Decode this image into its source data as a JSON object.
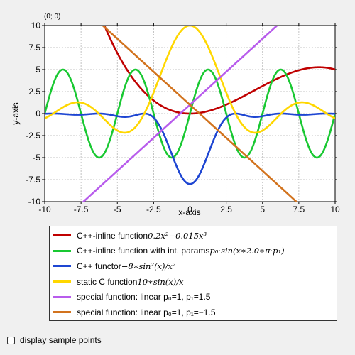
{
  "coordinate_readout": "(0; 0)",
  "chart_data": {
    "type": "line",
    "xlabel": "x-axis",
    "ylabel": "y-axis",
    "xlim": [
      -10,
      10
    ],
    "ylim": [
      -10,
      10
    ],
    "grid": true,
    "legend_placement": "bottom",
    "x_ticks": [
      "-10",
      "-7.5",
      "-5",
      "-2.5",
      "0",
      "2.5",
      "5",
      "7.5",
      "10"
    ],
    "y_ticks": [
      "10",
      "7.5",
      "5",
      "2.5",
      "0",
      "-2.5",
      "-5",
      "-7.5",
      "-10"
    ],
    "series": [
      {
        "name": "C++-inline function 0.2x²−0.015x³",
        "color": "#c00000",
        "func": "cubic"
      },
      {
        "name": "C++-inline function with int. params p₀·sin(x·2.0·π·p₁)",
        "color": "#19c832",
        "func": "sin_params"
      },
      {
        "name": "C++ functor −8·sin²(x)/x²",
        "color": "#1e46d2",
        "func": "sinc2"
      },
      {
        "name": "static C function 10·sin(x)/x",
        "color": "#ffd700",
        "func": "sinc"
      },
      {
        "name": "special function: linear p₀=1, p₁=1.5",
        "color": "#b85cec",
        "func": "linear_pos"
      },
      {
        "name": "special function: linear p₀=1, p₁=−1.5",
        "color": "#d2731e",
        "func": "linear_neg"
      }
    ]
  },
  "legend": {
    "items": [
      {
        "prefix": "C++-inline function ",
        "math": "0.2x²−0.015x³"
      },
      {
        "prefix": "C++-inline function with int. params ",
        "math": "p₀·sin(x∗2.0∗π·p₁)"
      },
      {
        "prefix": "C++ functor ",
        "math": "−8∗sin²(x)/x²"
      },
      {
        "prefix": "static C function ",
        "math": "10∗sin(x)/x"
      },
      {
        "prefix": "special function: linear p₀=1, p₁=1.5",
        "math": ""
      },
      {
        "prefix": "special function: linear p₀=1, p₁=−1.5",
        "math": ""
      }
    ]
  },
  "checkbox": {
    "label": "display sample points",
    "checked": false
  }
}
